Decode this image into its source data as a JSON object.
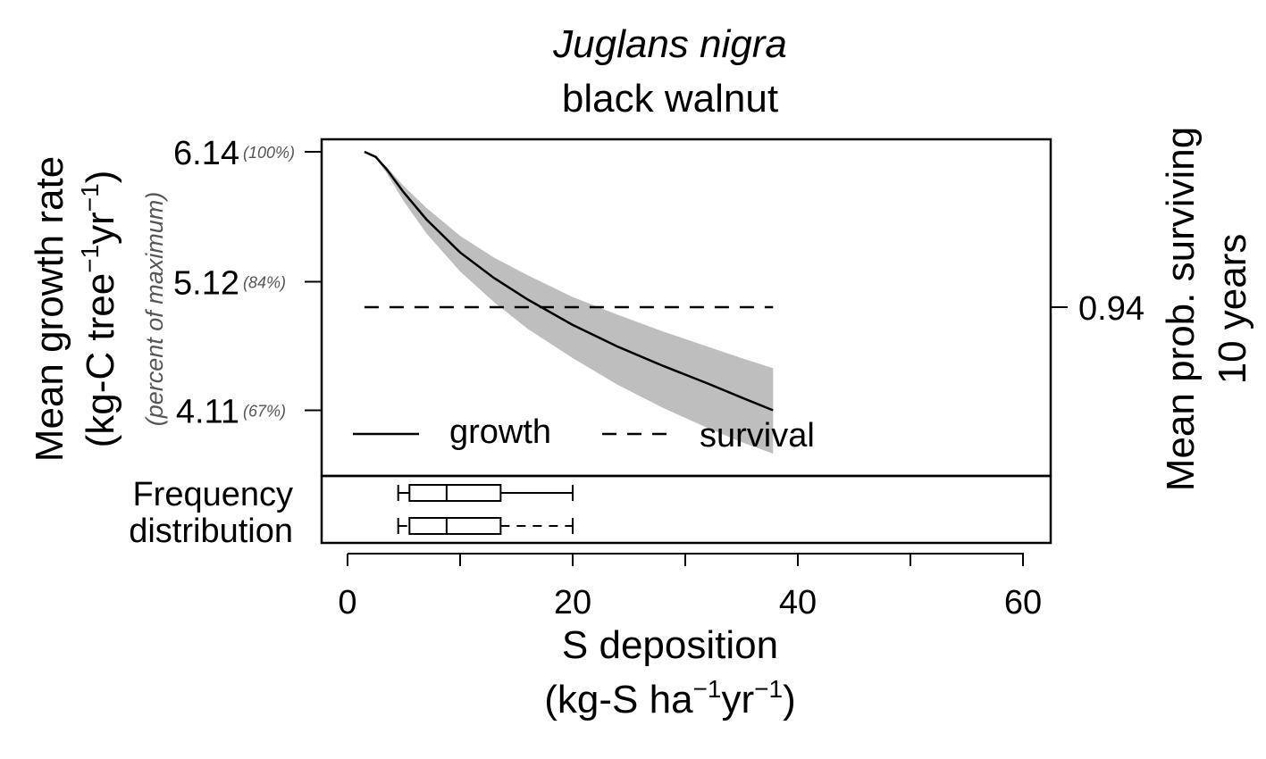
{
  "title": {
    "species": "Juglans nigra",
    "common": "black walnut"
  },
  "y_left": {
    "label_line1": "Mean growth rate",
    "label_line2_a": "(kg-C tree",
    "label_line2_sup1": "−1",
    "label_line2_b": "yr",
    "label_line2_sup2": "−1",
    "label_line2_c": ")",
    "sub_label": "(percent of maximum)"
  },
  "y_right": {
    "label_line1": "Mean prob. surviving",
    "label_line2": "10 years"
  },
  "x_axis": {
    "label_line1": "S deposition",
    "label_line2_a": "(kg-S ha",
    "label_line2_sup1": "−1",
    "label_line2_b": "yr",
    "label_line2_sup2": "−1",
    "label_line2_c": ")"
  },
  "freq_label": {
    "line1": "Frequency",
    "line2": "distribution"
  },
  "legend": {
    "growth": "growth",
    "survival": "survival"
  },
  "chart_data": {
    "type": "line",
    "xlim": [
      -2.4,
      62.4
    ],
    "x_ticks": [
      0,
      20,
      40,
      60
    ],
    "x_minor_ticks": [
      10,
      30,
      50
    ],
    "y_left_ticks": [
      {
        "value": 6.14,
        "label": "6.14",
        "pct": "(100%)"
      },
      {
        "value": 5.12,
        "label": "5.12",
        "pct": "(84%)"
      },
      {
        "value": 4.11,
        "label": "4.11",
        "pct": "(67%)"
      }
    ],
    "y_right_ticks": [
      {
        "value": 0.94,
        "label": "0.94"
      }
    ],
    "growth": {
      "x": [
        1.5,
        2.5,
        3.5,
        5,
        7,
        10,
        13,
        16,
        20,
        24,
        28,
        32,
        35,
        37.8
      ],
      "y": [
        6.14,
        6.1,
        6.0,
        5.82,
        5.61,
        5.35,
        5.15,
        4.98,
        4.78,
        4.61,
        4.46,
        4.32,
        4.21,
        4.11
      ],
      "lower": [
        6.14,
        6.09,
        5.97,
        5.75,
        5.5,
        5.2,
        4.96,
        4.75,
        4.52,
        4.31,
        4.13,
        3.97,
        3.86,
        3.77
      ],
      "upper": [
        6.14,
        6.1,
        6.02,
        5.87,
        5.7,
        5.48,
        5.31,
        5.17,
        5.0,
        4.86,
        4.73,
        4.61,
        4.52,
        4.44
      ]
    },
    "survival": {
      "x": [
        1.5,
        37.8
      ],
      "y": [
        0.94,
        0.94
      ]
    },
    "boxplots": [
      {
        "series": "growth",
        "min": 4.5,
        "q1": 5.5,
        "median": 8.8,
        "q3": 13.6,
        "max": 20.0
      },
      {
        "series": "survival",
        "min": 4.5,
        "q1": 5.5,
        "median": 8.8,
        "q3": 13.6,
        "max": 20.0
      }
    ],
    "grid": false,
    "legend_position": "bottom"
  }
}
